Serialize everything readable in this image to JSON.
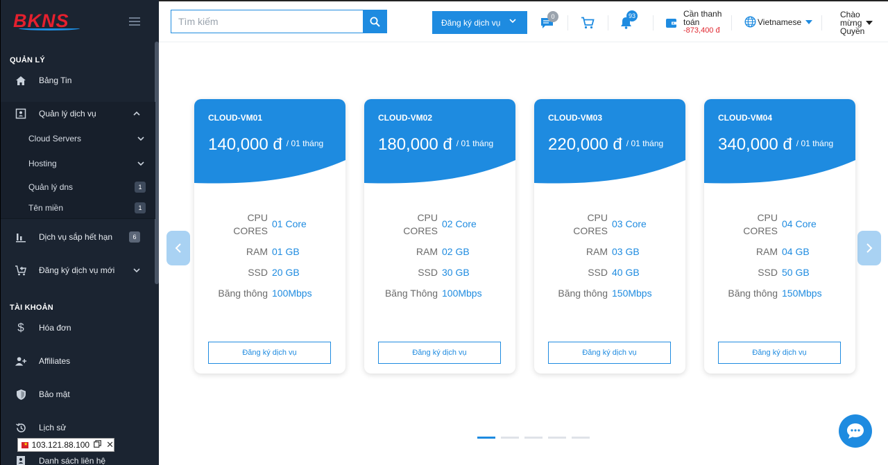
{
  "brand": {
    "logo_text": "BKNS"
  },
  "sidebar": {
    "section_manage": "QUẢN LÝ",
    "news": "Bảng Tin",
    "service_mgmt": "Quản lý dịch vụ",
    "sub": [
      {
        "label": "Cloud Servers"
      },
      {
        "label": "Hosting"
      },
      {
        "label": "Quản lý dns",
        "badge": "1"
      },
      {
        "label": "Tên miền",
        "badge": "1"
      }
    ],
    "expiring": "Dịch vụ sắp hết hạn",
    "expiring_badge": "6",
    "register_new": "Đăng ký dịch vụ mới",
    "section_account": "TÀI KHOẢN",
    "invoice": "Hóa đơn",
    "affiliates": "Affiliates",
    "security": "Bảo mật",
    "history": "Lịch sử",
    "contacts": "Danh sách liên hệ"
  },
  "ip_box": {
    "ip": "103.121.88.100"
  },
  "topbar": {
    "search_placeholder": "Tìm kiếm",
    "register_button": "Đăng ký dịch vụ",
    "ticket_badge": "0",
    "notification_badge": "93",
    "pay_line1": "Cần thanh",
    "pay_line2": "toán",
    "pay_amount": "-873,400 đ",
    "language": "Vietnamese",
    "greet_line1": "Chào",
    "greet_line2": "mừng",
    "greet_line3": "Quyền"
  },
  "plans": [
    {
      "name": "CLOUD-VM01",
      "price": "140,000 đ",
      "period": "/ 01 tháng",
      "cpu_k1": "CPU",
      "cpu_k2": "CORES",
      "cpu": "01 Core",
      "ram_k": "RAM",
      "ram": "01 GB",
      "ssd_k": "SSD",
      "ssd": "20 GB",
      "bw_k": "Băng thông",
      "bw": "100Mbps",
      "button": "Đăng ký dịch vụ"
    },
    {
      "name": "CLOUD-VM02",
      "price": "180,000 đ",
      "period": "/ 01 tháng",
      "cpu_k1": "CPU",
      "cpu_k2": "CORES",
      "cpu": "02 Core",
      "ram_k": "RAM",
      "ram": "02 GB",
      "ssd_k": "SSD",
      "ssd": "30 GB",
      "bw_k": "Băng Thông",
      "bw": "100Mbps",
      "button": "Đăng ký dịch vụ"
    },
    {
      "name": "CLOUD-VM03",
      "price": "220,000 đ",
      "period": "/ 01 tháng",
      "cpu_k1": "CPU",
      "cpu_k2": "CORES",
      "cpu": "03 Core",
      "ram_k": "RAM",
      "ram": "03 GB",
      "ssd_k": "SSD",
      "ssd": "40 GB",
      "bw_k": "Băng thông",
      "bw": "150Mbps",
      "button": "Đăng ký dịch vụ"
    },
    {
      "name": "CLOUD-VM04",
      "price": "340,000 đ",
      "period": "/ 01 tháng",
      "cpu_k1": "CPU",
      "cpu_k2": "CORES",
      "cpu": "04 Core",
      "ram_k": "RAM",
      "ram": "04 GB",
      "ssd_k": "SSD",
      "ssd": "50 GB",
      "bw_k": "Băng thông",
      "bw": "150Mbps",
      "button": "Đăng ký dịch vụ"
    }
  ],
  "carousel": {
    "active_index": 0,
    "total_pages": 5
  },
  "colors": {
    "accent": "#1e8be0",
    "sidebar_bg": "#1b2431",
    "negative": "#e0262e"
  }
}
